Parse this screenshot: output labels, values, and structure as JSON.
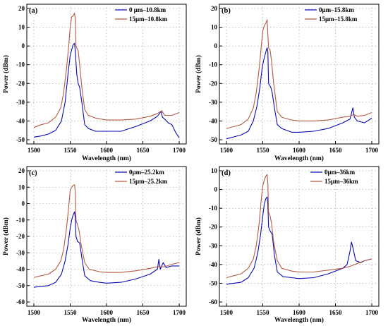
{
  "chart_data": [
    {
      "panel_label": "(a)",
      "type": "line",
      "xlabel": "Wavelength (nm)",
      "ylabel": "Power (dBm)",
      "xlim": [
        1500,
        1700
      ],
      "ylim": [
        -50,
        20
      ],
      "x_ticks": [
        1500,
        1550,
        1600,
        1650,
        1700
      ],
      "y_ticks": [
        -50,
        -40,
        -30,
        -20,
        -10,
        0,
        10,
        20
      ],
      "grid": true,
      "legend_position": "top-right",
      "series": [
        {
          "name": "0 μm–10.8km",
          "color": "#0a0ab4",
          "points": [
            [
              1500,
              -48.6
            ],
            [
              1510,
              -48
            ],
            [
              1520,
              -47
            ],
            [
              1530,
              -45
            ],
            [
              1538,
              -40
            ],
            [
              1543,
              -30
            ],
            [
              1547,
              -15
            ],
            [
              1550,
              -5
            ],
            [
              1552,
              -2
            ],
            [
              1554,
              0.5
            ],
            [
              1556,
              1.5
            ],
            [
              1557,
              -3
            ],
            [
              1559,
              -15
            ],
            [
              1561,
              -20
            ],
            [
              1563,
              -22
            ],
            [
              1566,
              -30
            ],
            [
              1570,
              -42
            ],
            [
              1575,
              -44
            ],
            [
              1585,
              -45.5
            ],
            [
              1600,
              -45.5
            ],
            [
              1620,
              -45.5
            ],
            [
              1640,
              -43
            ],
            [
              1660,
              -40
            ],
            [
              1670,
              -37.5
            ],
            [
              1675,
              -35
            ],
            [
              1677,
              -38
            ],
            [
              1680,
              -39
            ],
            [
              1685,
              -41
            ],
            [
              1690,
              -42
            ],
            [
              1695,
              -46
            ],
            [
              1700,
              -49
            ]
          ]
        },
        {
          "name": "15μm–10.8km",
          "color": "#b45a46",
          "points": [
            [
              1500,
              -43.5
            ],
            [
              1510,
              -42
            ],
            [
              1520,
              -41
            ],
            [
              1530,
              -38
            ],
            [
              1537,
              -33
            ],
            [
              1541,
              -25
            ],
            [
              1545,
              -12
            ],
            [
              1548,
              0
            ],
            [
              1550,
              10
            ],
            [
              1552,
              15.5
            ],
            [
              1554,
              16
            ],
            [
              1556,
              17.5
            ],
            [
              1557,
              14
            ],
            [
              1558,
              0
            ],
            [
              1559,
              -1
            ],
            [
              1561,
              -2.5
            ],
            [
              1563,
              -10
            ],
            [
              1566,
              -22
            ],
            [
              1570,
              -34
            ],
            [
              1575,
              -37
            ],
            [
              1585,
              -38.5
            ],
            [
              1600,
              -39.5
            ],
            [
              1620,
              -39.5
            ],
            [
              1640,
              -39
            ],
            [
              1660,
              -37.5
            ],
            [
              1670,
              -36
            ],
            [
              1676,
              -34.5
            ],
            [
              1680,
              -37
            ],
            [
              1690,
              -37
            ],
            [
              1700,
              -35.5
            ]
          ]
        }
      ]
    },
    {
      "panel_label": "(b)",
      "type": "line",
      "xlabel": "Wavelength (nm)",
      "ylabel": "Power (dBm)",
      "xlim": [
        1500,
        1700
      ],
      "ylim": [
        -50,
        20
      ],
      "x_ticks": [
        1500,
        1550,
        1600,
        1650,
        1700
      ],
      "y_ticks": [
        -50,
        -40,
        -30,
        -20,
        -10,
        0,
        10,
        20
      ],
      "grid": true,
      "legend_position": "top-right",
      "series": [
        {
          "name": "0μm–15.8km",
          "color": "#0a0ab4",
          "points": [
            [
              1500,
              -49.5
            ],
            [
              1510,
              -48.5
            ],
            [
              1520,
              -47.5
            ],
            [
              1530,
              -45.5
            ],
            [
              1537,
              -40
            ],
            [
              1542,
              -32
            ],
            [
              1546,
              -22
            ],
            [
              1549,
              -12
            ],
            [
              1551,
              -8
            ],
            [
              1553,
              -5
            ],
            [
              1555,
              -2
            ],
            [
              1556,
              -1
            ],
            [
              1557,
              -3
            ],
            [
              1558,
              -20
            ],
            [
              1561,
              -22
            ],
            [
              1563,
              -25
            ],
            [
              1566,
              -33
            ],
            [
              1570,
              -42
            ],
            [
              1576,
              -44
            ],
            [
              1590,
              -46
            ],
            [
              1600,
              -46
            ],
            [
              1620,
              -45.5
            ],
            [
              1640,
              -44
            ],
            [
              1660,
              -41
            ],
            [
              1670,
              -39
            ],
            [
              1674,
              -33
            ],
            [
              1676,
              -38
            ],
            [
              1680,
              -40
            ],
            [
              1690,
              -41
            ],
            [
              1700,
              -38.5
            ]
          ]
        },
        {
          "name": "15μm–15.8km",
          "color": "#b45a46",
          "points": [
            [
              1500,
              -44
            ],
            [
              1510,
              -43
            ],
            [
              1520,
              -42
            ],
            [
              1530,
              -39
            ],
            [
              1537,
              -33
            ],
            [
              1541,
              -25
            ],
            [
              1545,
              -12
            ],
            [
              1548,
              0
            ],
            [
              1550,
              8
            ],
            [
              1552,
              11
            ],
            [
              1554,
              12
            ],
            [
              1556,
              14
            ],
            [
              1557,
              6
            ],
            [
              1558,
              -1
            ],
            [
              1560,
              -2
            ],
            [
              1562,
              -8
            ],
            [
              1565,
              -20
            ],
            [
              1570,
              -35
            ],
            [
              1576,
              -38
            ],
            [
              1590,
              -39.5
            ],
            [
              1600,
              -40
            ],
            [
              1620,
              -40
            ],
            [
              1640,
              -39.5
            ],
            [
              1660,
              -38
            ],
            [
              1670,
              -37.5
            ],
            [
              1675,
              -36.5
            ],
            [
              1680,
              -37.5
            ],
            [
              1690,
              -37
            ],
            [
              1700,
              -35.5
            ]
          ]
        }
      ]
    },
    {
      "panel_label": "(c)",
      "type": "line",
      "xlabel": "Wavelength (nm)",
      "ylabel": "Power (dBm)",
      "xlim": [
        1500,
        1700
      ],
      "ylim": [
        -60,
        20
      ],
      "x_ticks": [
        1500,
        1550,
        1600,
        1650,
        1700
      ],
      "y_ticks": [
        -60,
        -50,
        -40,
        -30,
        -20,
        -10,
        0,
        10,
        20
      ],
      "grid": true,
      "legend_position": "top-right",
      "series": [
        {
          "name": "0μm–25.2km",
          "color": "#0a0ab4",
          "points": [
            [
              1500,
              -51
            ],
            [
              1510,
              -50.5
            ],
            [
              1520,
              -50
            ],
            [
              1530,
              -48
            ],
            [
              1538,
              -43
            ],
            [
              1543,
              -35
            ],
            [
              1547,
              -25
            ],
            [
              1550,
              -15
            ],
            [
              1552,
              -10
            ],
            [
              1554,
              -7
            ],
            [
              1556,
              -5
            ],
            [
              1557,
              -9
            ],
            [
              1558,
              -20
            ],
            [
              1560,
              -23
            ],
            [
              1563,
              -24
            ],
            [
              1566,
              -33
            ],
            [
              1570,
              -44
            ],
            [
              1578,
              -47
            ],
            [
              1590,
              -48
            ],
            [
              1600,
              -48.5
            ],
            [
              1620,
              -48
            ],
            [
              1640,
              -46
            ],
            [
              1660,
              -43
            ],
            [
              1670,
              -40
            ],
            [
              1672,
              -34
            ],
            [
              1674,
              -40
            ],
            [
              1678,
              -36
            ],
            [
              1682,
              -39
            ],
            [
              1690,
              -38
            ],
            [
              1700,
              -38
            ]
          ]
        },
        {
          "name": "15μm–25.2km",
          "color": "#b45a46",
          "points": [
            [
              1500,
              -45
            ],
            [
              1510,
              -44
            ],
            [
              1520,
              -43
            ],
            [
              1530,
              -40
            ],
            [
              1537,
              -35
            ],
            [
              1541,
              -28
            ],
            [
              1545,
              -15
            ],
            [
              1548,
              -2
            ],
            [
              1550,
              8
            ],
            [
              1552,
              10
            ],
            [
              1554,
              11
            ],
            [
              1556,
              11.5
            ],
            [
              1557,
              7
            ],
            [
              1558,
              -10
            ],
            [
              1560,
              -13
            ],
            [
              1562,
              -16
            ],
            [
              1565,
              -25
            ],
            [
              1570,
              -36
            ],
            [
              1576,
              -40
            ],
            [
              1590,
              -41.5
            ],
            [
              1600,
              -42
            ],
            [
              1620,
              -42
            ],
            [
              1640,
              -41
            ],
            [
              1660,
              -39.5
            ],
            [
              1670,
              -38.5
            ],
            [
              1680,
              -38.5
            ],
            [
              1690,
              -37
            ],
            [
              1700,
              -36
            ]
          ]
        }
      ]
    },
    {
      "panel_label": "(d)",
      "type": "line",
      "xlabel": "Wavelength (nm)",
      "ylabel": "Power (dBm)",
      "xlim": [
        1500,
        1700
      ],
      "ylim": [
        -60,
        10
      ],
      "x_ticks": [
        1500,
        1550,
        1600,
        1650,
        1700
      ],
      "y_ticks": [
        -60,
        -50,
        -40,
        -30,
        -20,
        -10,
        0,
        10
      ],
      "grid": true,
      "legend_position": "top-right",
      "series": [
        {
          "name": "0μm–36km",
          "color": "#0a0ab4",
          "points": [
            [
              1500,
              -50.5
            ],
            [
              1510,
              -50
            ],
            [
              1520,
              -49.5
            ],
            [
              1530,
              -47
            ],
            [
              1538,
              -42
            ],
            [
              1543,
              -34
            ],
            [
              1547,
              -24
            ],
            [
              1550,
              -14
            ],
            [
              1552,
              -8
            ],
            [
              1554,
              -5
            ],
            [
              1556,
              -4
            ],
            [
              1557,
              -8
            ],
            [
              1558,
              -20
            ],
            [
              1560,
              -22
            ],
            [
              1563,
              -24
            ],
            [
              1566,
              -35
            ],
            [
              1570,
              -44
            ],
            [
              1578,
              -46.5
            ],
            [
              1590,
              -47
            ],
            [
              1600,
              -47.5
            ],
            [
              1620,
              -47
            ],
            [
              1640,
              -45
            ],
            [
              1660,
              -42
            ],
            [
              1666,
              -40
            ],
            [
              1670,
              -33
            ],
            [
              1672,
              -28
            ],
            [
              1674,
              -31
            ],
            [
              1678,
              -38
            ],
            [
              1685,
              -39
            ],
            [
              1690,
              -38
            ],
            [
              1700,
              -37
            ]
          ]
        },
        {
          "name": "15μm–36km",
          "color": "#b45a46",
          "points": [
            [
              1500,
              -47
            ],
            [
              1510,
              -46
            ],
            [
              1520,
              -45
            ],
            [
              1530,
              -42
            ],
            [
              1537,
              -37
            ],
            [
              1541,
              -30
            ],
            [
              1545,
              -18
            ],
            [
              1548,
              -5
            ],
            [
              1550,
              2
            ],
            [
              1552,
              5
            ],
            [
              1554,
              7
            ],
            [
              1556,
              8
            ],
            [
              1557,
              3
            ],
            [
              1558,
              -12
            ],
            [
              1560,
              -14
            ],
            [
              1562,
              -18
            ],
            [
              1565,
              -28
            ],
            [
              1570,
              -38
            ],
            [
              1576,
              -42
            ],
            [
              1590,
              -43.5
            ],
            [
              1600,
              -44
            ],
            [
              1620,
              -44
            ],
            [
              1640,
              -43
            ],
            [
              1660,
              -42
            ],
            [
              1670,
              -41
            ],
            [
              1680,
              -39.5
            ],
            [
              1690,
              -38
            ],
            [
              1700,
              -37
            ]
          ]
        }
      ]
    }
  ]
}
